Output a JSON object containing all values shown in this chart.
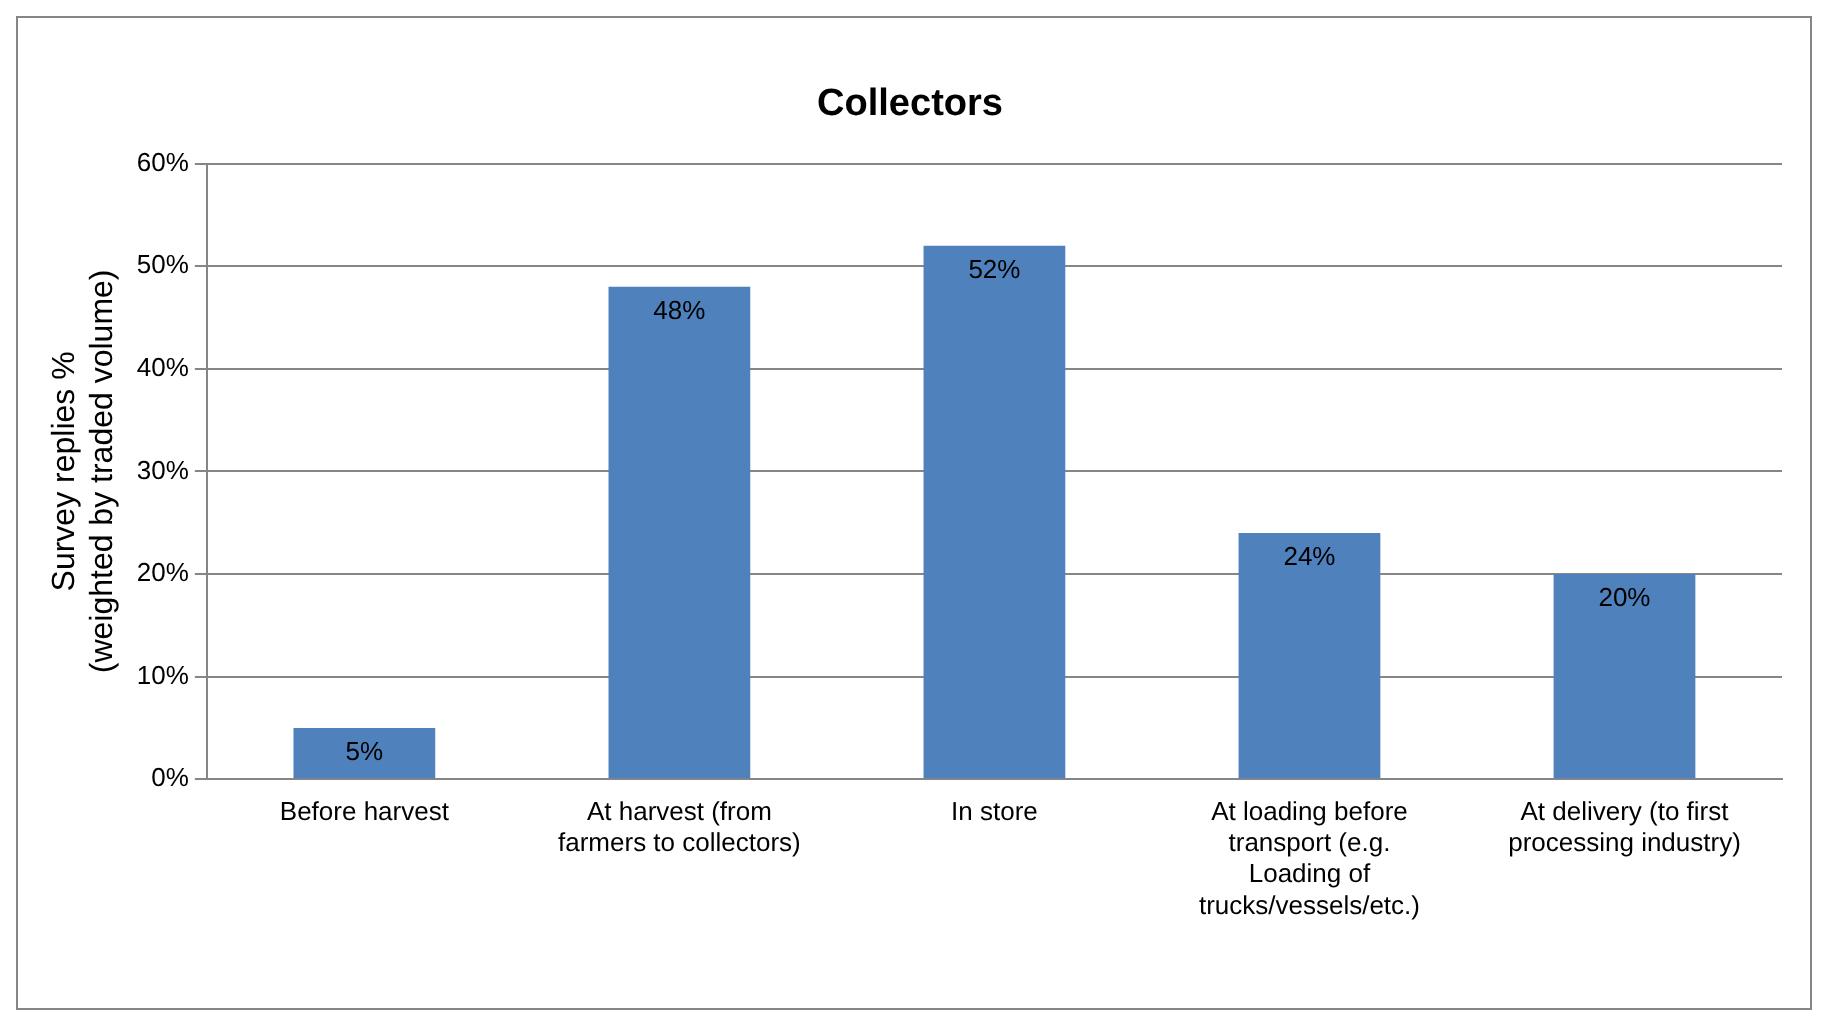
{
  "chart_data": {
    "type": "bar",
    "title": "Collectors",
    "ylabel": "Survey replies %\n(weighted by traded volume)",
    "categories": [
      "Before harvest",
      "At harvest (from farmers to collectors)",
      "In store",
      "At loading before transport (e.g. Loading of trucks/vessels/etc.)",
      "At delivery (to first processing industry)"
    ],
    "values": [
      5,
      48,
      52,
      24,
      20
    ],
    "color": "#4f81bd",
    "ylim": [
      0,
      60
    ],
    "yticks": [
      {
        "value": 0,
        "label": "0%"
      },
      {
        "value": 10,
        "label": "10%"
      },
      {
        "value": 20,
        "label": "20%"
      },
      {
        "value": 30,
        "label": "30%"
      },
      {
        "value": 40,
        "label": "40%"
      },
      {
        "value": 50,
        "label": "50%"
      },
      {
        "value": 60,
        "label": "60%"
      }
    ],
    "value_labels": [
      "5%",
      "48%",
      "52%",
      "24%",
      "20%"
    ],
    "grid": "y",
    "legend": false
  }
}
